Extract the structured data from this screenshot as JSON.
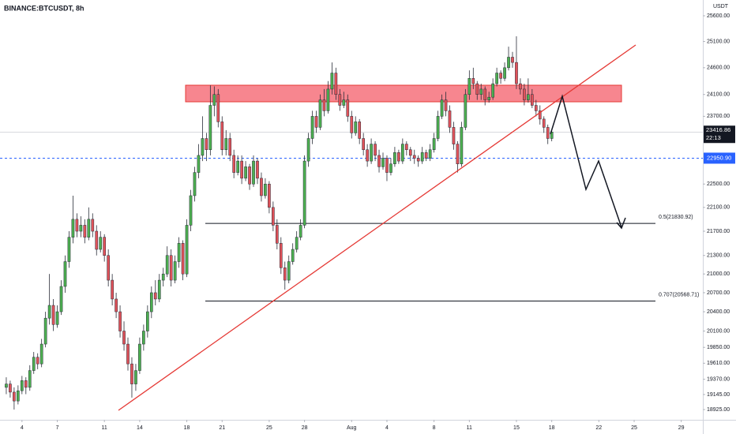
{
  "chart_data": {
    "type": "candlestick",
    "title": "BINANCE:BTCUSDT, 8h",
    "currency": "USDT",
    "countdown": "22:13",
    "up_color": "#4caf50",
    "down_color": "#e0525a",
    "log_scale": true,
    "grid": false,
    "ylim": [
      18777,
      25912
    ],
    "yticks": [
      {
        "value": 25600,
        "label": "25600.00"
      },
      {
        "value": 25100,
        "label": "25100.00"
      },
      {
        "value": 24600,
        "label": "24600.00"
      },
      {
        "value": 24100,
        "label": "24100.00"
      },
      {
        "value": 23700,
        "label": "23700.00"
      },
      {
        "value": 22500,
        "label": "22500.00"
      },
      {
        "value": 22100,
        "label": "22100.00"
      },
      {
        "value": 21700,
        "label": "21700.00"
      },
      {
        "value": 21300,
        "label": "21300.00"
      },
      {
        "value": 21000,
        "label": "21000.00"
      },
      {
        "value": 20700,
        "label": "20700.00"
      },
      {
        "value": 20400,
        "label": "20400.00"
      },
      {
        "value": 20100,
        "label": "20100.00"
      },
      {
        "value": 19850,
        "label": "19850.00"
      },
      {
        "value": 19610,
        "label": "19610.00"
      },
      {
        "value": 19370,
        "label": "19370.00"
      },
      {
        "value": 19145,
        "label": "19145.00"
      },
      {
        "value": 18925,
        "label": "18925.00"
      }
    ],
    "xlim": [
      -1.6,
      177.5
    ],
    "xticks": [
      {
        "value": 4,
        "label": "4"
      },
      {
        "value": 13,
        "label": "7"
      },
      {
        "value": 25,
        "label": "11"
      },
      {
        "value": 34,
        "label": "14"
      },
      {
        "value": 46,
        "label": "18"
      },
      {
        "value": 55,
        "label": "21"
      },
      {
        "value": 67,
        "label": "25"
      },
      {
        "value": 76,
        "label": "28"
      },
      {
        "value": 88,
        "label": "Aug"
      },
      {
        "value": 97,
        "label": "4"
      },
      {
        "value": 109,
        "label": "8"
      },
      {
        "value": 118,
        "label": "11"
      },
      {
        "value": 130,
        "label": "15"
      },
      {
        "value": 139,
        "label": "18"
      },
      {
        "value": 151,
        "label": "22"
      },
      {
        "value": 160,
        "label": "25"
      },
      {
        "value": 172,
        "label": "29"
      }
    ],
    "alert_line": {
      "value": 22950.9,
      "label": "22950.90",
      "color": "#2962ff"
    },
    "fib_levels": [
      {
        "value": 21830.92,
        "label": "0.5(21830.92)"
      },
      {
        "value": 20568.71,
        "label": "0.707(20568.71)"
      }
    ],
    "candles": [
      [
        19250,
        19400,
        19150,
        19300
      ],
      [
        19300,
        19350,
        19100,
        19180
      ],
      [
        19180,
        19250,
        18925,
        19050
      ],
      [
        19050,
        19280,
        19000,
        19200
      ],
      [
        19200,
        19420,
        19150,
        19350
      ],
      [
        19350,
        19400,
        19150,
        19250
      ],
      [
        19250,
        19580,
        19200,
        19500
      ],
      [
        19500,
        19780,
        19450,
        19700
      ],
      [
        19700,
        19760,
        19520,
        19600
      ],
      [
        19600,
        19980,
        19550,
        19900
      ],
      [
        19900,
        20400,
        19850,
        20300
      ],
      [
        20300,
        21000,
        20200,
        20500
      ],
      [
        20500,
        20600,
        20100,
        20200
      ],
      [
        20200,
        20500,
        20150,
        20400
      ],
      [
        20400,
        20900,
        20350,
        20800
      ],
      [
        20800,
        21300,
        20700,
        21200
      ],
      [
        21200,
        21700,
        21100,
        21600
      ],
      [
        21600,
        22300,
        21500,
        21900
      ],
      [
        21900,
        22000,
        21600,
        21700
      ],
      [
        21700,
        21950,
        21600,
        21800
      ],
      [
        21800,
        21900,
        21500,
        21600
      ],
      [
        21600,
        22100,
        21550,
        21900
      ],
      [
        21900,
        22000,
        21600,
        21700
      ],
      [
        21700,
        21800,
        21300,
        21400
      ],
      [
        21400,
        21700,
        21350,
        21600
      ],
      [
        21600,
        21650,
        21200,
        21300
      ],
      [
        21300,
        21400,
        20800,
        20900
      ],
      [
        20900,
        21000,
        20500,
        20600
      ],
      [
        20600,
        20700,
        20300,
        20400
      ],
      [
        20400,
        20500,
        20000,
        20100
      ],
      [
        20100,
        20250,
        19800,
        19900
      ],
      [
        19900,
        20000,
        19500,
        19600
      ],
      [
        19600,
        19700,
        19100,
        19300
      ],
      [
        19300,
        19600,
        19200,
        19500
      ],
      [
        19500,
        20000,
        19450,
        19900
      ],
      [
        19900,
        20200,
        19800,
        20100
      ],
      [
        20100,
        20500,
        20000,
        20400
      ],
      [
        20400,
        20800,
        20300,
        20700
      ],
      [
        20700,
        20900,
        20500,
        20600
      ],
      [
        20600,
        21000,
        20550,
        20900
      ],
      [
        20900,
        21100,
        20800,
        21000
      ],
      [
        21000,
        21450,
        20950,
        21300
      ],
      [
        21300,
        21400,
        20800,
        20900
      ],
      [
        20900,
        21300,
        20850,
        21200
      ],
      [
        21200,
        21600,
        21100,
        21500
      ],
      [
        21500,
        21550,
        20900,
        21000
      ],
      [
        21000,
        21900,
        20950,
        21800
      ],
      [
        21800,
        22400,
        21700,
        22300
      ],
      [
        22300,
        22800,
        22200,
        22700
      ],
      [
        22700,
        23200,
        22600,
        23000
      ],
      [
        23000,
        23700,
        22900,
        23300
      ],
      [
        23300,
        23400,
        22900,
        23100
      ],
      [
        23100,
        24270,
        23000,
        23900
      ],
      [
        23900,
        24250,
        23700,
        24100
      ],
      [
        24100,
        24200,
        23500,
        23600
      ],
      [
        23600,
        23700,
        23000,
        23100
      ],
      [
        23100,
        23450,
        23000,
        23300
      ],
      [
        23300,
        23400,
        22900,
        23000
      ],
      [
        23000,
        23100,
        22600,
        22700
      ],
      [
        22700,
        23000,
        22650,
        22900
      ],
      [
        22900,
        23000,
        22500,
        22600
      ],
      [
        22600,
        22900,
        22550,
        22800
      ],
      [
        22800,
        22850,
        22400,
        22500
      ],
      [
        22500,
        23000,
        22450,
        22900
      ],
      [
        22900,
        22950,
        22500,
        22600
      ],
      [
        22600,
        22700,
        22200,
        22300
      ],
      [
        22300,
        22600,
        22250,
        22500
      ],
      [
        22500,
        22550,
        22000,
        22100
      ],
      [
        22100,
        22200,
        21700,
        21800
      ],
      [
        21800,
        21900,
        21400,
        21500
      ],
      [
        21500,
        21600,
        21000,
        21100
      ],
      [
        21100,
        21200,
        20750,
        20900
      ],
      [
        20900,
        21300,
        20850,
        21200
      ],
      [
        21200,
        21500,
        21150,
        21400
      ],
      [
        21400,
        21700,
        21350,
        21600
      ],
      [
        21600,
        21900,
        21550,
        21800
      ],
      [
        21800,
        23000,
        21750,
        22900
      ],
      [
        22900,
        23400,
        22800,
        23300
      ],
      [
        23300,
        23800,
        23200,
        23700
      ],
      [
        23700,
        23800,
        23400,
        23500
      ],
      [
        23500,
        24100,
        23450,
        24000
      ],
      [
        24000,
        24200,
        23700,
        23800
      ],
      [
        23800,
        24350,
        23750,
        24200
      ],
      [
        24200,
        24700,
        24100,
        24500
      ],
      [
        24500,
        24600,
        24000,
        24100
      ],
      [
        24100,
        24200,
        23800,
        23900
      ],
      [
        23900,
        24150,
        23850,
        24000
      ],
      [
        24000,
        24100,
        23600,
        23700
      ],
      [
        23700,
        23800,
        23300,
        23400
      ],
      [
        23400,
        23700,
        23350,
        23600
      ],
      [
        23600,
        23650,
        23200,
        23300
      ],
      [
        23300,
        23400,
        23000,
        23100
      ],
      [
        23100,
        23200,
        22800,
        22900
      ],
      [
        22900,
        23300,
        22850,
        23200
      ],
      [
        23200,
        23250,
        22900,
        23000
      ],
      [
        23000,
        23100,
        22700,
        22800
      ],
      [
        22800,
        23050,
        22750,
        22950
      ],
      [
        22950,
        23000,
        22550,
        22700
      ],
      [
        22700,
        22950,
        22650,
        22850
      ],
      [
        22850,
        23150,
        22800,
        23050
      ],
      [
        23050,
        23100,
        22850,
        22900
      ],
      [
        22900,
        23300,
        22850,
        23200
      ],
      [
        23200,
        23250,
        23000,
        23100
      ],
      [
        23100,
        23150,
        22900,
        23000
      ],
      [
        23000,
        23100,
        22850,
        22950
      ],
      [
        22950,
        23000,
        22800,
        22900
      ],
      [
        22900,
        23150,
        22850,
        23050
      ],
      [
        23050,
        23100,
        22900,
        22950
      ],
      [
        22950,
        23200,
        22900,
        23100
      ],
      [
        23100,
        23400,
        23050,
        23300
      ],
      [
        23300,
        23800,
        23250,
        23700
      ],
      [
        23700,
        24100,
        23650,
        24000
      ],
      [
        24000,
        24150,
        23700,
        23800
      ],
      [
        23800,
        23900,
        23400,
        23500
      ],
      [
        23500,
        23600,
        23100,
        23200
      ],
      [
        23200,
        23250,
        22700,
        22850
      ],
      [
        22850,
        23600,
        22800,
        23500
      ],
      [
        23500,
        24200,
        23450,
        24100
      ],
      [
        24100,
        24550,
        24000,
        24400
      ],
      [
        24400,
        24600,
        24200,
        24300
      ],
      [
        24300,
        24350,
        24000,
        24100
      ],
      [
        24100,
        24300,
        24000,
        24200
      ],
      [
        24200,
        24250,
        23900,
        24000
      ],
      [
        24000,
        24150,
        23950,
        24050
      ],
      [
        24050,
        24400,
        24000,
        24300
      ],
      [
        24300,
        24600,
        24250,
        24500
      ],
      [
        24500,
        24550,
        24300,
        24400
      ],
      [
        24400,
        24700,
        24350,
        24600
      ],
      [
        24600,
        25000,
        24550,
        24800
      ],
      [
        24800,
        24900,
        24600,
        24700
      ],
      [
        24700,
        25200,
        24200,
        24300
      ],
      [
        24300,
        24400,
        24100,
        24200
      ],
      [
        24200,
        24300,
        23900,
        24000
      ],
      [
        24000,
        24400,
        23950,
        24100
      ],
      [
        24100,
        24200,
        23850,
        23900
      ],
      [
        23900,
        24000,
        23700,
        23800
      ],
      [
        23800,
        23900,
        23550,
        23650
      ],
      [
        23650,
        23700,
        23400,
        23500
      ],
      [
        23500,
        23550,
        23200,
        23300
      ],
      [
        23300,
        23450,
        23250,
        23416.86
      ]
    ]
  }
}
